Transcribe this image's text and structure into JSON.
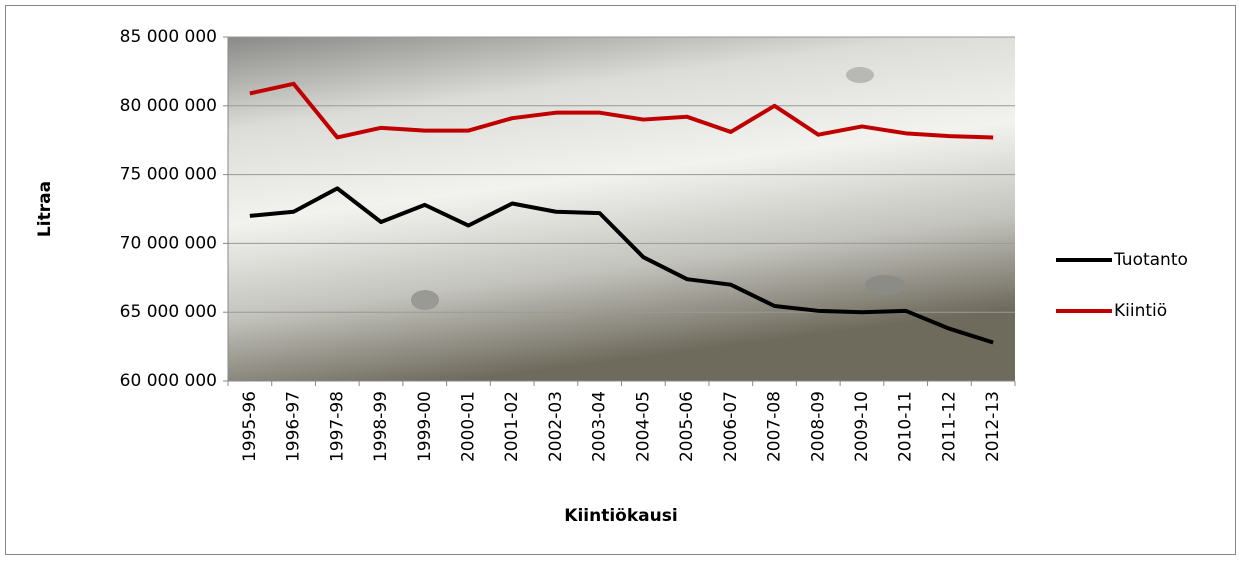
{
  "chart_data": {
    "type": "line",
    "x_label": "Kiintiökausi",
    "y_label": "Litraa",
    "categories": [
      "1995-96",
      "1996-97",
      "1997-98",
      "1998-99",
      "1999-00",
      "2000-01",
      "2001-02",
      "2002-03",
      "2003-04",
      "2004-05",
      "2005-06",
      "2006-07",
      "2007-08",
      "2008-09",
      "2009-10",
      "2010-11",
      "2011-12",
      "2012-13"
    ],
    "series": [
      {
        "name": "Tuotanto",
        "color": "#000000",
        "values": [
          72000000,
          72300000,
          74000000,
          71550000,
          72800000,
          71300000,
          72900000,
          72300000,
          72200000,
          69000000,
          67400000,
          67000000,
          65450000,
          65100000,
          65000000,
          65100000,
          63800000,
          62800000
        ]
      },
      {
        "name": "Kiintiö",
        "color": "#c00000",
        "values": [
          80900000,
          81600000,
          77700000,
          78400000,
          78200000,
          78200000,
          79100000,
          79500000,
          79500000,
          79000000,
          79200000,
          78100000,
          80000000,
          77900000,
          78500000,
          78000000,
          77800000,
          77700000
        ]
      }
    ],
    "ylim": [
      60000000,
      85000000
    ],
    "yticks": [
      {
        "value": 60000000,
        "label": "60 000 000"
      },
      {
        "value": 65000000,
        "label": "65 000 000"
      },
      {
        "value": 70000000,
        "label": "70 000 000"
      },
      {
        "value": 75000000,
        "label": "75 000 000"
      },
      {
        "value": 80000000,
        "label": "80 000 000"
      },
      {
        "value": 85000000,
        "label": "85 000 000"
      }
    ],
    "grid": true,
    "legend": "right"
  }
}
